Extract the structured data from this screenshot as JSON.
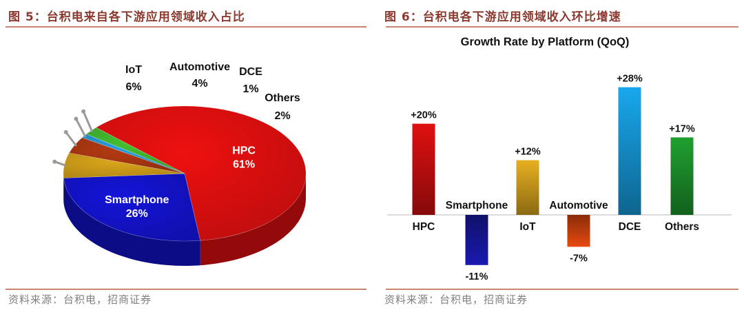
{
  "left": {
    "figure_title": "图 5：台积电来自各下游应用领域收入占比",
    "source": "资料来源：台积电，招商证券"
  },
  "right": {
    "figure_title": "图 6：台积电各下游应用领域收入环比增速",
    "source": "资料来源：台积电，招商证券"
  },
  "chart_data": [
    {
      "type": "pie",
      "title": "",
      "categories": [
        "HPC",
        "Smartphone",
        "IoT",
        "Automotive",
        "DCE",
        "Others"
      ],
      "values": [
        61,
        26,
        6,
        4,
        1,
        2
      ],
      "labels": [
        "61%",
        "26%",
        "6%",
        "4%",
        "1%",
        "2%"
      ],
      "colors": [
        "#ee1010",
        "#1414d8",
        "#dba61a",
        "#b33a12",
        "#2a9fe0",
        "#44c030"
      ]
    },
    {
      "type": "bar",
      "title": "Growth Rate by Platform (QoQ)",
      "categories": [
        "HPC",
        "Smartphone",
        "IoT",
        "Automotive",
        "DCE",
        "Others"
      ],
      "values": [
        20,
        -11,
        12,
        -7,
        28,
        17
      ],
      "labels": [
        "+20%",
        "-11%",
        "+12%",
        "-7%",
        "+28%",
        "+17%"
      ],
      "unit": "%",
      "ylim": [
        -11,
        28
      ],
      "colors": [
        "#e01010",
        "#1a1ab0",
        "#e8b020",
        "#e84a10",
        "#18a8ee",
        "#20a030"
      ]
    }
  ]
}
